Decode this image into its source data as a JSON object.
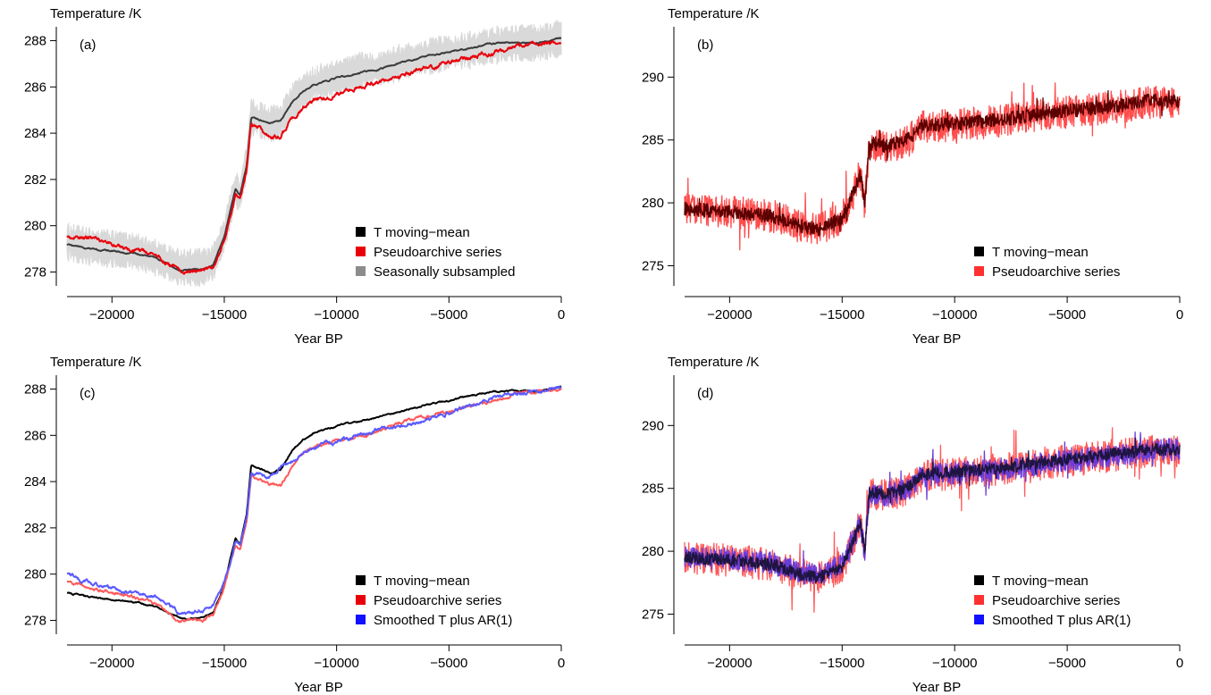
{
  "chart_data": [
    {
      "type": "line",
      "panel_label": "(a)",
      "ylabel": "Temperature /K",
      "xlabel": "Year BP",
      "xlim": [
        -22000,
        0
      ],
      "ylim": [
        277.4,
        288.6
      ],
      "xticks": [
        -20000,
        -15000,
        -10000,
        -5000,
        0
      ],
      "xtick_labels": [
        "−20000",
        "−15000",
        "−10000",
        "−5000",
        "0"
      ],
      "yticks": [
        278,
        280,
        282,
        284,
        286,
        288
      ],
      "ytick_labels": [
        "278",
        "280",
        "282",
        "284",
        "286",
        "288"
      ],
      "legend_position": "bottom-right",
      "series": [
        {
          "name": "Seasonally subsampled",
          "color": "#d9d9d9",
          "legend_color": "#8c8c8c",
          "style": "band",
          "noise": 0.55,
          "x": [
            -22000,
            -21000,
            -19000,
            -18000,
            -17000,
            -16000,
            -15500,
            -15000,
            -14500,
            -14300,
            -14000,
            -13800,
            -13500,
            -13000,
            -12500,
            -12000,
            -11500,
            -11000,
            -10000,
            -9000,
            -8000,
            -7000,
            -6000,
            -5000,
            -4000,
            -3000,
            -2000,
            -1000,
            0
          ],
          "values": [
            279.3,
            279.1,
            278.9,
            278.6,
            278.2,
            278.2,
            278.4,
            279.6,
            281.6,
            281.3,
            282.8,
            284.7,
            284.6,
            284.4,
            284.5,
            285.3,
            285.8,
            286.1,
            286.4,
            286.7,
            286.8,
            287.1,
            287.3,
            287.5,
            287.6,
            287.8,
            287.9,
            287.9,
            288.1
          ]
        },
        {
          "name": "T moving−mean",
          "color": "#3a3a3a",
          "legend_color": "#000000",
          "style": "line",
          "noise": 0.04,
          "x": [
            -22000,
            -21000,
            -19000,
            -18000,
            -17000,
            -16000,
            -15500,
            -15000,
            -14500,
            -14300,
            -14000,
            -13800,
            -13500,
            -13000,
            -12500,
            -12000,
            -11500,
            -11000,
            -10000,
            -9000,
            -8000,
            -7000,
            -6000,
            -5000,
            -4000,
            -3000,
            -2000,
            -1000,
            0
          ],
          "values": [
            279.2,
            279.0,
            278.8,
            278.6,
            278.1,
            278.1,
            278.3,
            279.5,
            281.6,
            281.3,
            282.6,
            284.7,
            284.6,
            284.4,
            284.5,
            285.3,
            285.8,
            286.1,
            286.4,
            286.6,
            286.8,
            287.1,
            287.3,
            287.5,
            287.7,
            287.9,
            287.9,
            287.9,
            288.1
          ]
        },
        {
          "name": "Pseudoarchive series",
          "color": "#e8000b",
          "legend_color": "#e8000b",
          "style": "line",
          "noise": 0.12,
          "x": [
            -22000,
            -21000,
            -19000,
            -18000,
            -17000,
            -16000,
            -15500,
            -15000,
            -14500,
            -14300,
            -14000,
            -13800,
            -13500,
            -13000,
            -12500,
            -12000,
            -11500,
            -11000,
            -10000,
            -9000,
            -8000,
            -7000,
            -6000,
            -5000,
            -4000,
            -3000,
            -2000,
            -1000,
            0
          ],
          "values": [
            279.6,
            279.4,
            279.0,
            278.7,
            278.0,
            278.0,
            278.2,
            279.4,
            281.3,
            281.1,
            282.3,
            284.4,
            284.2,
            283.9,
            283.8,
            284.6,
            285.1,
            285.4,
            285.7,
            286.0,
            286.2,
            286.5,
            286.8,
            287.0,
            287.3,
            287.5,
            287.8,
            287.9,
            288.0
          ]
        }
      ]
    },
    {
      "type": "line",
      "panel_label": "(b)",
      "ylabel": "Temperature /K",
      "xlabel": "Year BP",
      "xlim": [
        -22000,
        0
      ],
      "ylim": [
        273.4,
        294.0
      ],
      "xticks": [
        -20000,
        -15000,
        -10000,
        -5000,
        0
      ],
      "xtick_labels": [
        "−20000",
        "−15000",
        "−10000",
        "−5000",
        "0"
      ],
      "yticks": [
        275,
        280,
        285,
        290
      ],
      "ytick_labels": [
        "275",
        "280",
        "285",
        "290"
      ],
      "legend_position": "bottom-right",
      "series": [
        {
          "name": "Pseudoarchive series",
          "color": "#ff4c4c",
          "legend_color": "#ff3030",
          "style": "noisy",
          "noise": 1.3,
          "x": [
            -22000,
            -20000,
            -18000,
            -17000,
            -16000,
            -15000,
            -14500,
            -14200,
            -14000,
            -13800,
            -13500,
            -13000,
            -12000,
            -11500,
            -10000,
            -8000,
            -6000,
            -4000,
            -2000,
            -1500,
            0
          ],
          "values": [
            279.5,
            279.3,
            278.9,
            278.2,
            277.9,
            278.8,
            280.8,
            282.3,
            280.0,
            284.5,
            284.6,
            284.4,
            285.0,
            286.0,
            286.2,
            286.5,
            287.0,
            287.4,
            287.8,
            288.0,
            288.0
          ]
        },
        {
          "name": "T moving−mean",
          "color": "#5a0000",
          "legend_color": "#000000",
          "style": "noisy",
          "noise": 0.55,
          "x": [
            -22000,
            -20000,
            -18000,
            -17000,
            -16000,
            -15000,
            -14500,
            -14200,
            -14000,
            -13800,
            -13500,
            -13000,
            -12000,
            -11500,
            -10000,
            -8000,
            -6000,
            -4000,
            -2000,
            -1500,
            0
          ],
          "values": [
            279.5,
            279.3,
            278.9,
            278.2,
            277.9,
            278.8,
            280.8,
            282.3,
            280.0,
            284.6,
            284.7,
            284.5,
            285.1,
            286.1,
            286.3,
            286.6,
            287.1,
            287.5,
            287.9,
            288.1,
            288.1
          ]
        }
      ]
    },
    {
      "type": "line",
      "panel_label": "(c)",
      "ylabel": "Temperature /K",
      "xlabel": "Year BP",
      "xlim": [
        -22000,
        0
      ],
      "ylim": [
        277.4,
        288.6
      ],
      "xticks": [
        -20000,
        -15000,
        -10000,
        -5000,
        0
      ],
      "xtick_labels": [
        "−20000",
        "−15000",
        "−10000",
        "−5000",
        "0"
      ],
      "yticks": [
        278,
        280,
        282,
        284,
        286,
        288
      ],
      "ytick_labels": [
        "278",
        "280",
        "282",
        "284",
        "286",
        "288"
      ],
      "legend_position": "bottom-right",
      "series": [
        {
          "name": "T moving−mean",
          "color": "#000000",
          "legend_color": "#000000",
          "style": "line",
          "noise": 0.04,
          "x": [
            -22000,
            -21000,
            -19000,
            -18000,
            -17000,
            -16000,
            -15500,
            -15000,
            -14500,
            -14300,
            -14000,
            -13800,
            -13500,
            -13000,
            -12500,
            -12000,
            -11500,
            -11000,
            -10000,
            -9000,
            -8000,
            -7000,
            -6000,
            -5000,
            -4000,
            -3000,
            -2000,
            -1000,
            0
          ],
          "values": [
            279.2,
            279.0,
            278.8,
            278.6,
            278.1,
            278.1,
            278.3,
            279.5,
            281.6,
            281.3,
            282.6,
            284.7,
            284.6,
            284.4,
            284.5,
            285.3,
            285.8,
            286.1,
            286.4,
            286.6,
            286.8,
            287.1,
            287.3,
            287.5,
            287.7,
            287.9,
            287.9,
            287.9,
            288.1
          ]
        },
        {
          "name": "Pseudoarchive series",
          "color": "#ff5a5a",
          "legend_color": "#e8000b",
          "style": "line",
          "noise": 0.08,
          "x": [
            -22000,
            -21000,
            -19000,
            -18000,
            -17000,
            -16000,
            -15500,
            -15000,
            -14500,
            -14300,
            -14000,
            -13800,
            -13500,
            -13000,
            -12500,
            -12000,
            -11500,
            -11000,
            -10000,
            -9000,
            -8000,
            -7000,
            -6000,
            -5000,
            -4000,
            -3000,
            -2000,
            -1000,
            0
          ],
          "values": [
            279.7,
            279.4,
            279.0,
            278.7,
            278.0,
            278.0,
            278.2,
            279.4,
            281.3,
            281.1,
            282.3,
            284.3,
            284.2,
            283.9,
            283.8,
            284.6,
            285.2,
            285.5,
            285.8,
            285.9,
            286.2,
            286.6,
            286.8,
            287.0,
            287.3,
            287.5,
            287.8,
            287.9,
            288.0
          ]
        },
        {
          "name": "Smoothed T plus AR(1)",
          "color": "#5a5aff",
          "legend_color": "#1010ff",
          "style": "line",
          "noise": 0.1,
          "x": [
            -22000,
            -21000,
            -19000,
            -18000,
            -17000,
            -16000,
            -15500,
            -15000,
            -14500,
            -14300,
            -14000,
            -13800,
            -13500,
            -13000,
            -12500,
            -12000,
            -11500,
            -11000,
            -10000,
            -9000,
            -8000,
            -7000,
            -6000,
            -5000,
            -4000,
            -3000,
            -2000,
            -1000,
            0
          ],
          "values": [
            280.0,
            279.6,
            279.2,
            279.0,
            278.3,
            278.4,
            278.6,
            279.6,
            281.4,
            281.2,
            282.4,
            284.3,
            284.3,
            284.2,
            284.6,
            284.9,
            285.3,
            285.5,
            285.7,
            286.0,
            286.3,
            286.4,
            286.7,
            287.0,
            287.3,
            287.6,
            287.8,
            287.9,
            288.1
          ]
        }
      ]
    },
    {
      "type": "line",
      "panel_label": "(d)",
      "ylabel": "Temperature /K",
      "xlabel": "Year BP",
      "xlim": [
        -22000,
        0
      ],
      "ylim": [
        273.4,
        294.0
      ],
      "xticks": [
        -20000,
        -15000,
        -10000,
        -5000,
        0
      ],
      "xtick_labels": [
        "−20000",
        "−15000",
        "−10000",
        "−5000",
        "0"
      ],
      "yticks": [
        275,
        280,
        285,
        290
      ],
      "ytick_labels": [
        "275",
        "280",
        "285",
        "290"
      ],
      "legend_position": "bottom-right",
      "series": [
        {
          "name": "Pseudoarchive series",
          "color": "#ff5a5a",
          "legend_color": "#ff3030",
          "style": "noisy",
          "noise": 1.3,
          "x": [
            -22000,
            -20000,
            -18000,
            -17000,
            -16000,
            -15000,
            -14500,
            -14200,
            -14000,
            -13800,
            -13500,
            -13000,
            -12000,
            -11500,
            -10000,
            -8000,
            -6000,
            -4000,
            -2000,
            -1500,
            0
          ],
          "values": [
            279.5,
            279.3,
            278.9,
            278.2,
            277.9,
            278.8,
            280.8,
            282.3,
            280.0,
            284.5,
            284.6,
            284.4,
            285.0,
            286.0,
            286.2,
            286.5,
            287.0,
            287.4,
            287.8,
            288.0,
            288.0
          ]
        },
        {
          "name": "Smoothed T plus AR(1)",
          "color": "#6a3cd8",
          "legend_color": "#1010ff",
          "style": "noisy",
          "noise": 0.9,
          "x": [
            -22000,
            -20000,
            -18000,
            -17000,
            -16000,
            -15000,
            -14500,
            -14200,
            -14000,
            -13800,
            -13500,
            -13000,
            -12000,
            -11500,
            -10000,
            -8000,
            -6000,
            -4000,
            -2000,
            -1500,
            0
          ],
          "values": [
            279.6,
            279.4,
            279.0,
            278.3,
            278.1,
            278.9,
            280.8,
            282.2,
            280.0,
            284.5,
            284.6,
            284.4,
            285.0,
            286.0,
            286.2,
            286.5,
            287.0,
            287.4,
            287.8,
            288.0,
            288.1
          ]
        },
        {
          "name": "T moving−mean",
          "color": "#1e1440",
          "legend_color": "#000000",
          "style": "noisy",
          "noise": 0.5,
          "x": [
            -22000,
            -20000,
            -18000,
            -17000,
            -16000,
            -15000,
            -14500,
            -14200,
            -14000,
            -13800,
            -13500,
            -13000,
            -12000,
            -11500,
            -10000,
            -8000,
            -6000,
            -4000,
            -2000,
            -1500,
            0
          ],
          "values": [
            279.5,
            279.3,
            278.9,
            278.2,
            277.9,
            278.8,
            280.8,
            282.3,
            280.0,
            284.6,
            284.7,
            284.5,
            285.1,
            286.1,
            286.3,
            286.6,
            287.1,
            287.5,
            287.9,
            288.1,
            288.1
          ]
        }
      ]
    }
  ]
}
